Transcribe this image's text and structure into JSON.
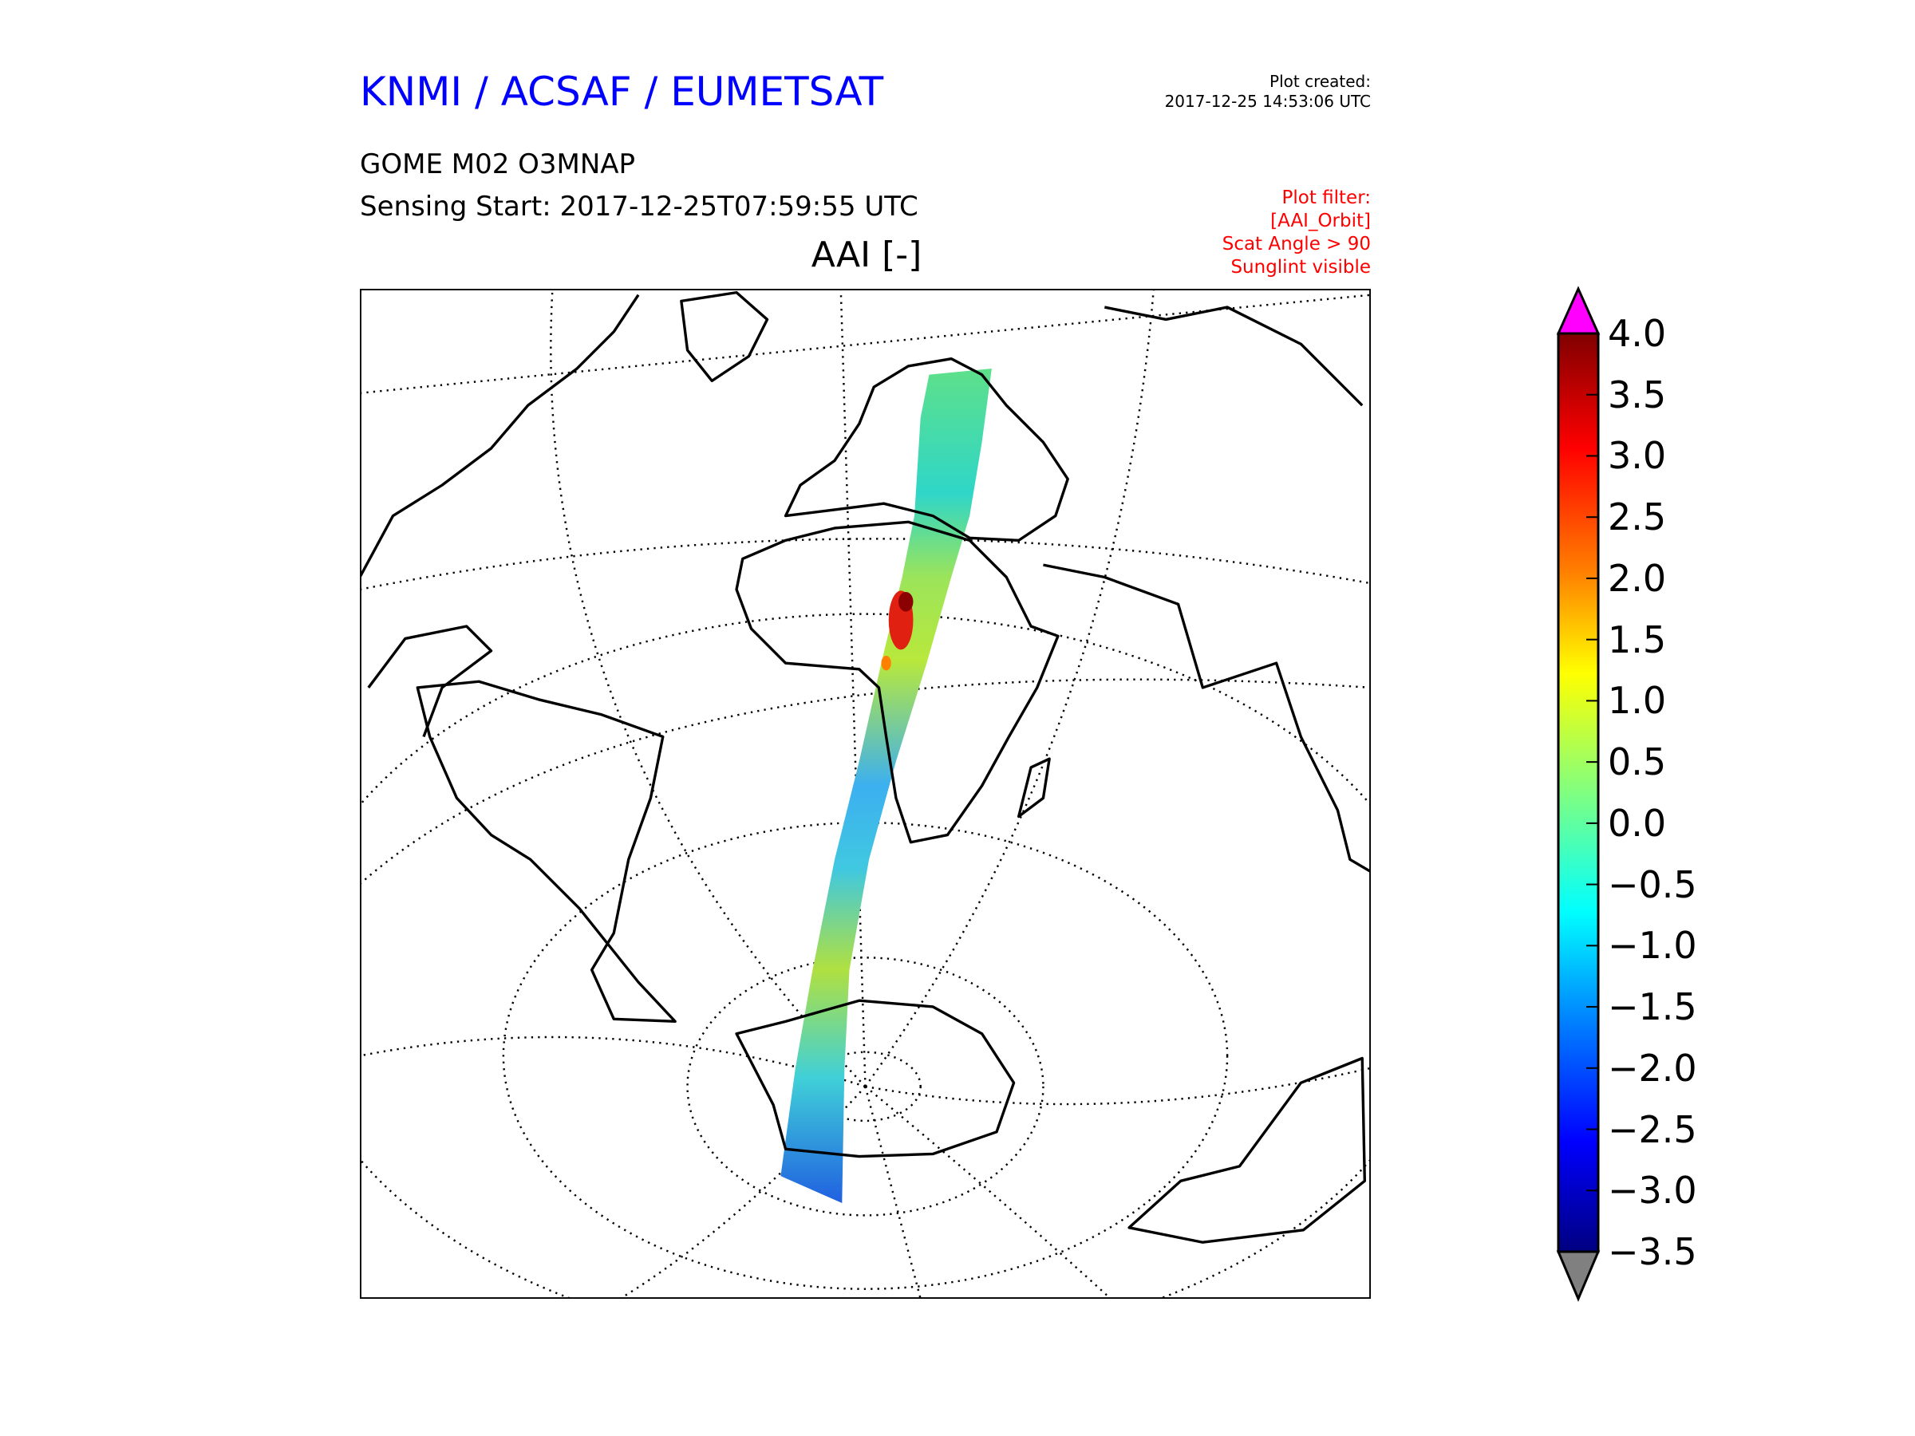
{
  "header": {
    "organization": "KNMI / ACSAF / EUMETSAT",
    "product": "GOME M02 O3MNAP",
    "sensing_start": "Sensing Start: 2017-12-25T07:59:55 UTC",
    "plot_title": "AAI [-]",
    "created_label": "Plot created:",
    "created_time": "2017-12-25 14:53:06 UTC",
    "filter_lines": [
      "Plot filter:",
      "[AAI_Orbit]",
      "Scat Angle > 90",
      "Sunglint visible"
    ]
  },
  "colors": {
    "title": "#0000ff",
    "filter": "#ff0000",
    "over": "#ff00ff",
    "under": "#808080"
  },
  "colorbar": {
    "min": -3.5,
    "max": 4.0,
    "colormap": "jet",
    "ticks": [
      "4.0",
      "3.5",
      "3.0",
      "2.5",
      "2.0",
      "1.5",
      "1.0",
      "0.5",
      "0.0",
      "−0.5",
      "−1.0",
      "−1.5",
      "−2.0",
      "−2.5",
      "−3.0",
      "−3.5"
    ],
    "tick_values": [
      4.0,
      3.5,
      3.0,
      2.5,
      2.0,
      1.5,
      1.0,
      0.5,
      0.0,
      -0.5,
      -1.0,
      -1.5,
      -2.0,
      -2.5,
      -3.0,
      -3.5
    ]
  }
}
